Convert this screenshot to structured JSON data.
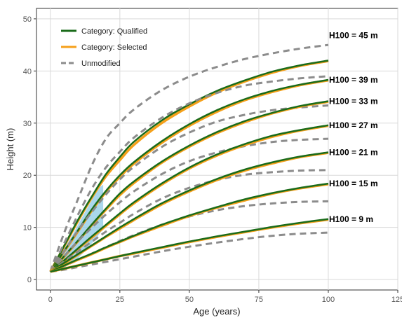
{
  "chart_data": {
    "type": "line",
    "xlabel": "Age (years)",
    "ylabel": "Height (m)",
    "xlim": [
      -5,
      125
    ],
    "ylim": [
      -2,
      52
    ],
    "x_ticks": [
      0,
      25,
      50,
      75,
      100,
      125
    ],
    "y_ticks": [
      0,
      10,
      20,
      30,
      40,
      50
    ],
    "grid": true,
    "legend_position": "top-left",
    "legend": [
      {
        "label": "Category: Qualified",
        "color": "#1a6b1a",
        "style": "solid"
      },
      {
        "label": "Category: Selected",
        "color": "#f5a01a",
        "style": "solid"
      },
      {
        "label": "Unmodified",
        "color": "#8c8c8c",
        "style": "dashed"
      }
    ],
    "x": [
      0,
      5,
      10,
      15,
      20,
      25,
      30,
      40,
      50,
      60,
      70,
      80,
      90,
      100
    ],
    "curves": [
      {
        "label": "H100 = 45 m",
        "qualified": [
          1.5,
          6.5,
          11.5,
          16.0,
          20.2,
          23.5,
          26.4,
          30.5,
          33.6,
          36.2,
          38.2,
          39.9,
          41.1,
          42.0
        ],
        "selected": [
          1.5,
          6.4,
          11.3,
          15.8,
          19.8,
          22.9,
          25.8,
          30.0,
          33.2,
          35.9,
          38.0,
          39.7,
          41.0,
          41.9
        ],
        "unmodified": [
          1.5,
          9.0,
          15.5,
          22.0,
          27.0,
          30.0,
          32.6,
          36.3,
          38.9,
          40.8,
          42.3,
          43.4,
          44.3,
          45.0
        ]
      },
      {
        "label": "H100 = 39 m",
        "qualified": [
          1.5,
          5.5,
          9.5,
          13.5,
          17.0,
          20.0,
          22.5,
          26.5,
          29.8,
          32.5,
          34.6,
          36.2,
          37.4,
          38.3
        ],
        "selected": [
          1.5,
          5.4,
          9.3,
          13.3,
          16.8,
          19.7,
          22.2,
          26.2,
          29.5,
          32.2,
          34.4,
          36.0,
          37.3,
          38.2
        ],
        "unmodified": [
          1.5,
          7.0,
          12.5,
          17.5,
          21.5,
          24.5,
          27.2,
          31.0,
          33.8,
          35.8,
          37.2,
          38.0,
          38.6,
          39.0
        ]
      },
      {
        "label": "H100 = 33 m",
        "qualified": [
          1.5,
          4.5,
          7.5,
          10.6,
          13.6,
          16.5,
          18.8,
          22.6,
          25.7,
          28.3,
          30.4,
          32.0,
          33.3,
          34.2
        ],
        "selected": [
          1.5,
          4.4,
          7.4,
          10.5,
          13.4,
          16.2,
          18.5,
          22.4,
          25.5,
          28.1,
          30.2,
          31.9,
          33.2,
          34.1
        ],
        "unmodified": [
          1.5,
          5.5,
          9.5,
          13.0,
          16.3,
          19.2,
          21.6,
          25.4,
          28.2,
          30.3,
          31.6,
          32.5,
          33.0,
          33.4
        ]
      },
      {
        "label": "H100 = 27 m",
        "qualified": [
          1.5,
          3.7,
          6.0,
          8.3,
          10.5,
          12.7,
          14.8,
          18.4,
          21.5,
          24.0,
          26.0,
          27.6,
          28.7,
          29.6
        ],
        "selected": [
          1.5,
          3.6,
          5.9,
          8.1,
          10.3,
          12.5,
          14.6,
          18.2,
          21.3,
          23.8,
          25.8,
          27.4,
          28.6,
          29.5
        ],
        "unmodified": [
          1.5,
          4.5,
          7.4,
          10.0,
          12.5,
          14.8,
          16.9,
          20.2,
          22.7,
          24.4,
          25.6,
          26.4,
          26.8,
          27.0
        ]
      },
      {
        "label": "H100 = 21 m",
        "qualified": [
          1.5,
          3.2,
          4.9,
          6.6,
          8.3,
          10.0,
          11.6,
          14.6,
          17.1,
          19.3,
          21.1,
          22.5,
          23.6,
          24.4
        ],
        "selected": [
          1.5,
          3.1,
          4.8,
          6.5,
          8.2,
          9.8,
          11.4,
          14.4,
          16.9,
          19.1,
          20.9,
          22.3,
          23.5,
          24.3
        ],
        "unmodified": [
          1.5,
          3.5,
          5.4,
          7.3,
          9.2,
          10.9,
          12.6,
          15.5,
          17.6,
          19.1,
          20.1,
          20.6,
          20.9,
          21.0
        ]
      },
      {
        "label": "H100 = 15 m",
        "qualified": [
          1.5,
          2.7,
          3.9,
          5.0,
          6.2,
          7.3,
          8.4,
          10.5,
          12.3,
          13.9,
          15.4,
          16.6,
          17.6,
          18.4
        ],
        "selected": [
          1.5,
          2.7,
          3.8,
          4.9,
          6.1,
          7.2,
          8.3,
          10.3,
          12.2,
          13.8,
          15.2,
          16.5,
          17.5,
          18.3
        ],
        "unmodified": [
          1.5,
          2.6,
          3.8,
          5.0,
          6.2,
          7.4,
          8.5,
          10.5,
          12.1,
          13.3,
          14.1,
          14.6,
          14.9,
          15.0
        ]
      },
      {
        "label": "H100 = 9 m",
        "qualified": [
          1.5,
          2.1,
          2.7,
          3.3,
          3.9,
          4.5,
          5.1,
          6.2,
          7.3,
          8.3,
          9.2,
          10.1,
          10.9,
          11.6
        ],
        "selected": [
          1.5,
          2.1,
          2.7,
          3.3,
          3.9,
          4.5,
          5.0,
          6.1,
          7.2,
          8.2,
          9.1,
          10.0,
          10.8,
          11.5
        ],
        "unmodified": [
          1.5,
          1.9,
          2.4,
          2.9,
          3.4,
          3.9,
          4.4,
          5.4,
          6.3,
          7.1,
          7.8,
          8.4,
          8.8,
          9.0
        ]
      }
    ],
    "shaded_region": {
      "color": "#8ecae6",
      "x": [
        2,
        4,
        6,
        8,
        10,
        12,
        14,
        16,
        18,
        19
      ],
      "upper": [
        2.8,
        4.8,
        6.8,
        8.6,
        10.6,
        12.5,
        14.4,
        16.3,
        17.8,
        18.2
      ],
      "lower": [
        1.7,
        2.0,
        2.6,
        3.3,
        4.1,
        5.2,
        6.4,
        7.6,
        9.0,
        9.6
      ]
    }
  }
}
